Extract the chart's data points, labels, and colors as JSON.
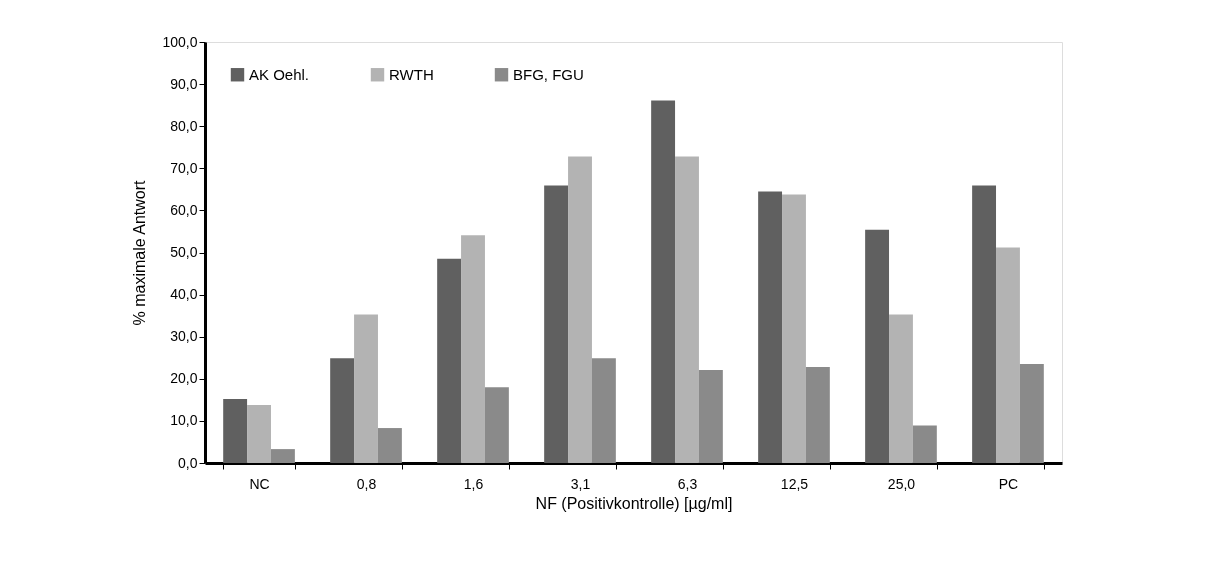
{
  "chart_data": {
    "type": "bar",
    "xlabel": "NF (Positivkontrolle) [µg/ml]",
    "ylabel": "% maximale Antwort",
    "categories": [
      "NC",
      "0,8",
      "1,6",
      "3,1",
      "6,3",
      "12,5",
      "25,0",
      "PC"
    ],
    "series": [
      {
        "name": "AK Oehl.",
        "color": "#606060",
        "values": [
          15.2,
          24.9,
          48.5,
          65.9,
          86.1,
          64.5,
          55.4,
          65.9
        ]
      },
      {
        "name": "RWTH",
        "color": "#b3b3b3",
        "values": [
          13.8,
          35.3,
          54.1,
          72.8,
          72.8,
          63.8,
          35.3,
          51.2
        ]
      },
      {
        "name": "BFG, FGU",
        "color": "#8a8a8a",
        "values": [
          3.3,
          8.3,
          18.0,
          24.9,
          22.1,
          22.8,
          8.9,
          23.5
        ]
      }
    ],
    "ylim": [
      0,
      100
    ],
    "yticks": [
      {
        "value": 0,
        "label": "0,0"
      },
      {
        "value": 10,
        "label": "10,0"
      },
      {
        "value": 20,
        "label": "20,0"
      },
      {
        "value": 30,
        "label": "30,0"
      },
      {
        "value": 40,
        "label": "40,0"
      },
      {
        "value": 50,
        "label": "50,0"
      },
      {
        "value": 60,
        "label": "60,0"
      },
      {
        "value": 70,
        "label": "70,0"
      },
      {
        "value": 80,
        "label": "80,0"
      },
      {
        "value": 90,
        "label": "90,0"
      },
      {
        "value": 100,
        "label": "100,0"
      }
    ],
    "grid": false,
    "legend": "top left"
  }
}
